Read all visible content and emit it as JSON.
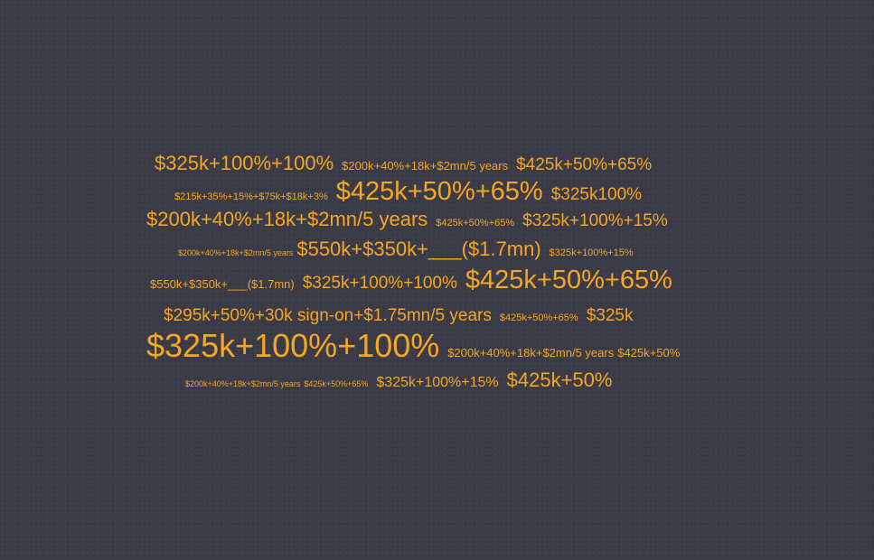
{
  "theme": {
    "background": "#3a3b47",
    "text_color": "#f5a623"
  },
  "cloud": {
    "line1": [
      "$325k+100%+100%",
      "$200k+40%+18k+$2mn/5 years",
      "$425k+50%+65%"
    ],
    "line2": [
      "$215k+35%+15%+$75k+$18k+3%",
      "$425k+50%+65%",
      "$325k100%"
    ],
    "line3": [
      "$200k+40%+18k+$2mn/5 years",
      "$425k+50%+65%",
      "$325k+100%+15%"
    ],
    "line4": [
      "$200k+40%+18k+$2mn/5 years",
      "$550k+$350k+___($1.7mn)",
      "$325k+100%+15%"
    ],
    "line5": [
      "$550k+$350k+___($1.7mn)",
      "$325k+100%+100%",
      "$425k+50%+65%"
    ],
    "line6": [
      "$295k+50%+30k sign-on+$1.75mn/5 years",
      "$425k+50%+65%",
      "$325k"
    ],
    "line7": [
      "$325k+100%+100%",
      "$200k+40%+18k+$2mn/5 years",
      "$425k+50%"
    ],
    "line8": [
      "$200k+40%+18k+$2mn/5 years",
      "$425k+50%+65%",
      "$325k+100%+15%",
      "$425k+50%"
    ]
  }
}
